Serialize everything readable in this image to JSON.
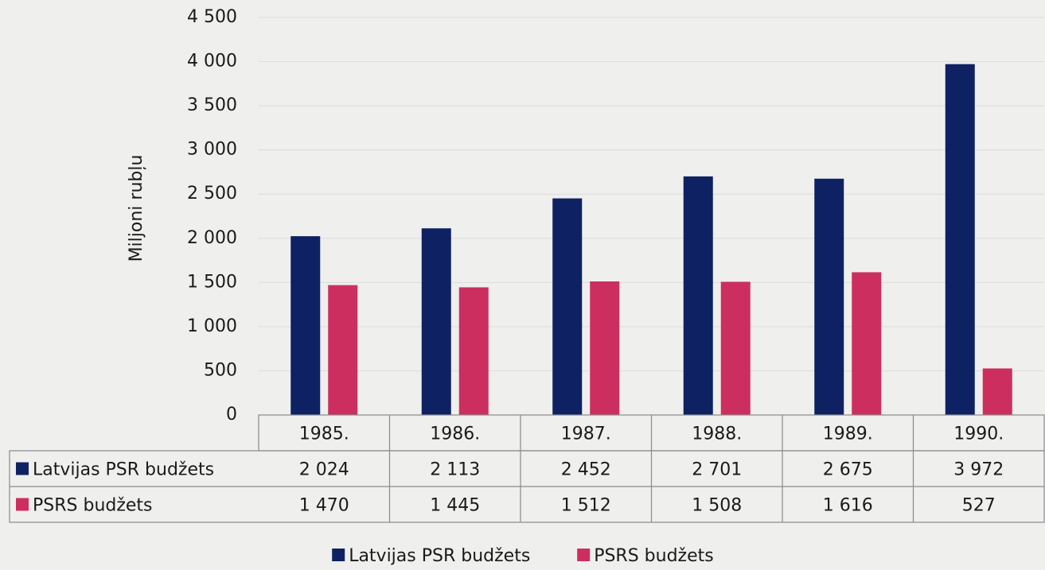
{
  "chart_data": {
    "type": "bar",
    "y_axis_label": "Miljoni rubļu",
    "categories": [
      "1985.",
      "1986.",
      "1987.",
      "1988.",
      "1989.",
      "1990."
    ],
    "series": [
      {
        "name": "Latvijas PSR budžets",
        "color": "#0e2163",
        "values": [
          2024,
          2113,
          2452,
          2701,
          2675,
          3972
        ],
        "value_labels": [
          "2 024",
          "2 113",
          "2 452",
          "2 701",
          "2 675",
          "3 972"
        ]
      },
      {
        "name": "PSRS budžets",
        "color": "#cc2f5f",
        "values": [
          1470,
          1445,
          1512,
          1508,
          1616,
          527
        ],
        "value_labels": [
          "1 470",
          "1 445",
          "1 512",
          "1 508",
          "1 616",
          "527"
        ]
      }
    ],
    "ylim": [
      0,
      4500
    ],
    "yticks": [
      0,
      500,
      {
        "value": 1000,
        "label": "1 000"
      },
      {
        "value": 1500,
        "label": "1 500"
      },
      {
        "value": 2000,
        "label": "2 000"
      },
      {
        "value": 2500,
        "label": "2 500"
      },
      {
        "value": 3000,
        "label": "3 000"
      },
      {
        "value": 3500,
        "label": "3 500"
      },
      {
        "value": 4000,
        "label": "4 000"
      },
      {
        "value": 4500,
        "label": "4 500"
      }
    ],
    "grid": true,
    "legend": "bottom",
    "data_table": true
  }
}
